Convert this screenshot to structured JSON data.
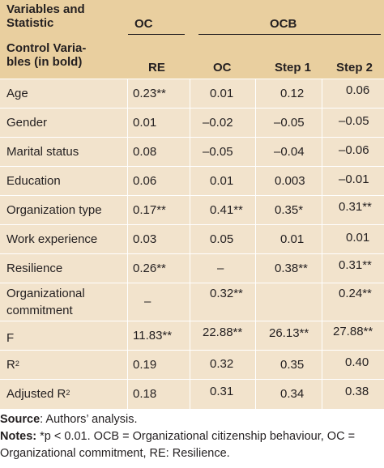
{
  "header": {
    "variables_stat": [
      "Variables and",
      "Statistic"
    ],
    "oc_group": "OC",
    "ocb_group": "OCB",
    "control_vars": [
      "Control Varia-",
      "bles (in bold)"
    ],
    "col_re": "RE",
    "col_oc": "OC",
    "col_step1": "Step 1",
    "col_step2": "Step 2"
  },
  "rows": [
    {
      "label": [
        "Age"
      ],
      "re": "0.23**",
      "oc": "0.01",
      "step1": "0.12",
      "step2": "0.06"
    },
    {
      "label": [
        "Gender"
      ],
      "re": "0.01",
      "oc": "–0.02",
      "step1": "–0.05",
      "step2": "–0.05"
    },
    {
      "label": [
        "Marital status"
      ],
      "re": "0.08",
      "oc": "–0.05",
      "step1": "–0.04",
      "step2": "–0.06"
    },
    {
      "label": [
        "Education"
      ],
      "re": "0.06",
      "oc": "0.01",
      "step1": "0.003",
      "step2": "–0.01"
    },
    {
      "label": [
        "Organization type"
      ],
      "re": "0.17**",
      "oc": "0.41**",
      "step1": "0.35*",
      "step2": "0.31**"
    },
    {
      "label": [
        "Work experience"
      ],
      "re": "0.03",
      "oc": "0.05",
      "step1": "0.01",
      "step2": "0.01"
    },
    {
      "label": [
        "Resilience"
      ],
      "re": "0.26**",
      "oc": "–",
      "step1": "0.38**",
      "step2": "0.31**"
    },
    {
      "label": [
        "Organizational",
        "commitment"
      ],
      "re": "–",
      "oc": "0.32**",
      "step1": "",
      "step2": "0.24**"
    },
    {
      "label": [
        "F"
      ],
      "re": "11.83**",
      "oc": "22.88**",
      "step1": "26.13**",
      "step2": "27.88**"
    },
    {
      "label": [
        "R",
        "2"
      ],
      "re": "0.19",
      "oc": "0.32",
      "step1": "0.35",
      "step2": "0.40"
    },
    {
      "label": [
        "Adjusted R",
        "2"
      ],
      "re": "0.18",
      "oc": "0.31",
      "step1": "0.34",
      "step2": "0.38"
    }
  ],
  "footer": {
    "source_label": "Source",
    "source_text": ": Authors’ analysis.",
    "notes_label": "Notes:",
    "notes_line1": " *p < 0.01. OCB = Organizational citizenship behaviour, OC =",
    "notes_line2": "Organizational commitment, RE: Resilience."
  },
  "colors": {
    "header_bg": "#e9cf9f",
    "body_bg": "#f2e3cc",
    "row_rule": "#ffffff",
    "text": "#231f20"
  }
}
